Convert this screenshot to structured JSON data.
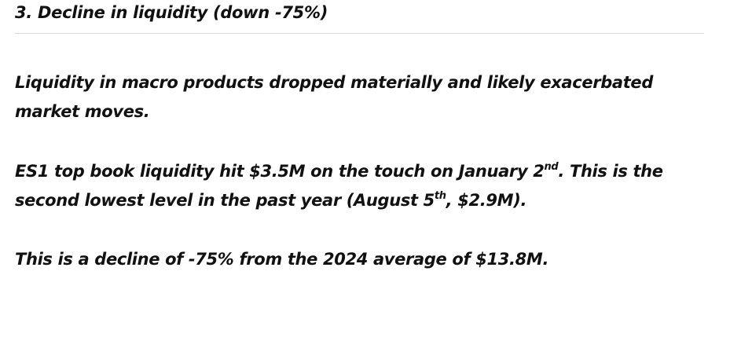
{
  "section": {
    "heading": "3. Decline in liquidity (down -75%)"
  },
  "paragraphs": {
    "p1": {
      "line1": "Liquidity in macro products dropped materially and likely exacerbated",
      "line2": "market moves."
    },
    "p2": {
      "line1_a": "ES1 top book liquidity hit $3.5M on the touch on January 2",
      "line1_sup": "nd",
      "line1_b": ". This is the",
      "line2_a": "second lowest level in the past year (August 5",
      "line2_sup": "th",
      "line2_b": ", $2.9M)."
    },
    "p3": {
      "line1": "This is a decline of -75% from the 2024 average of $13.8M."
    }
  }
}
